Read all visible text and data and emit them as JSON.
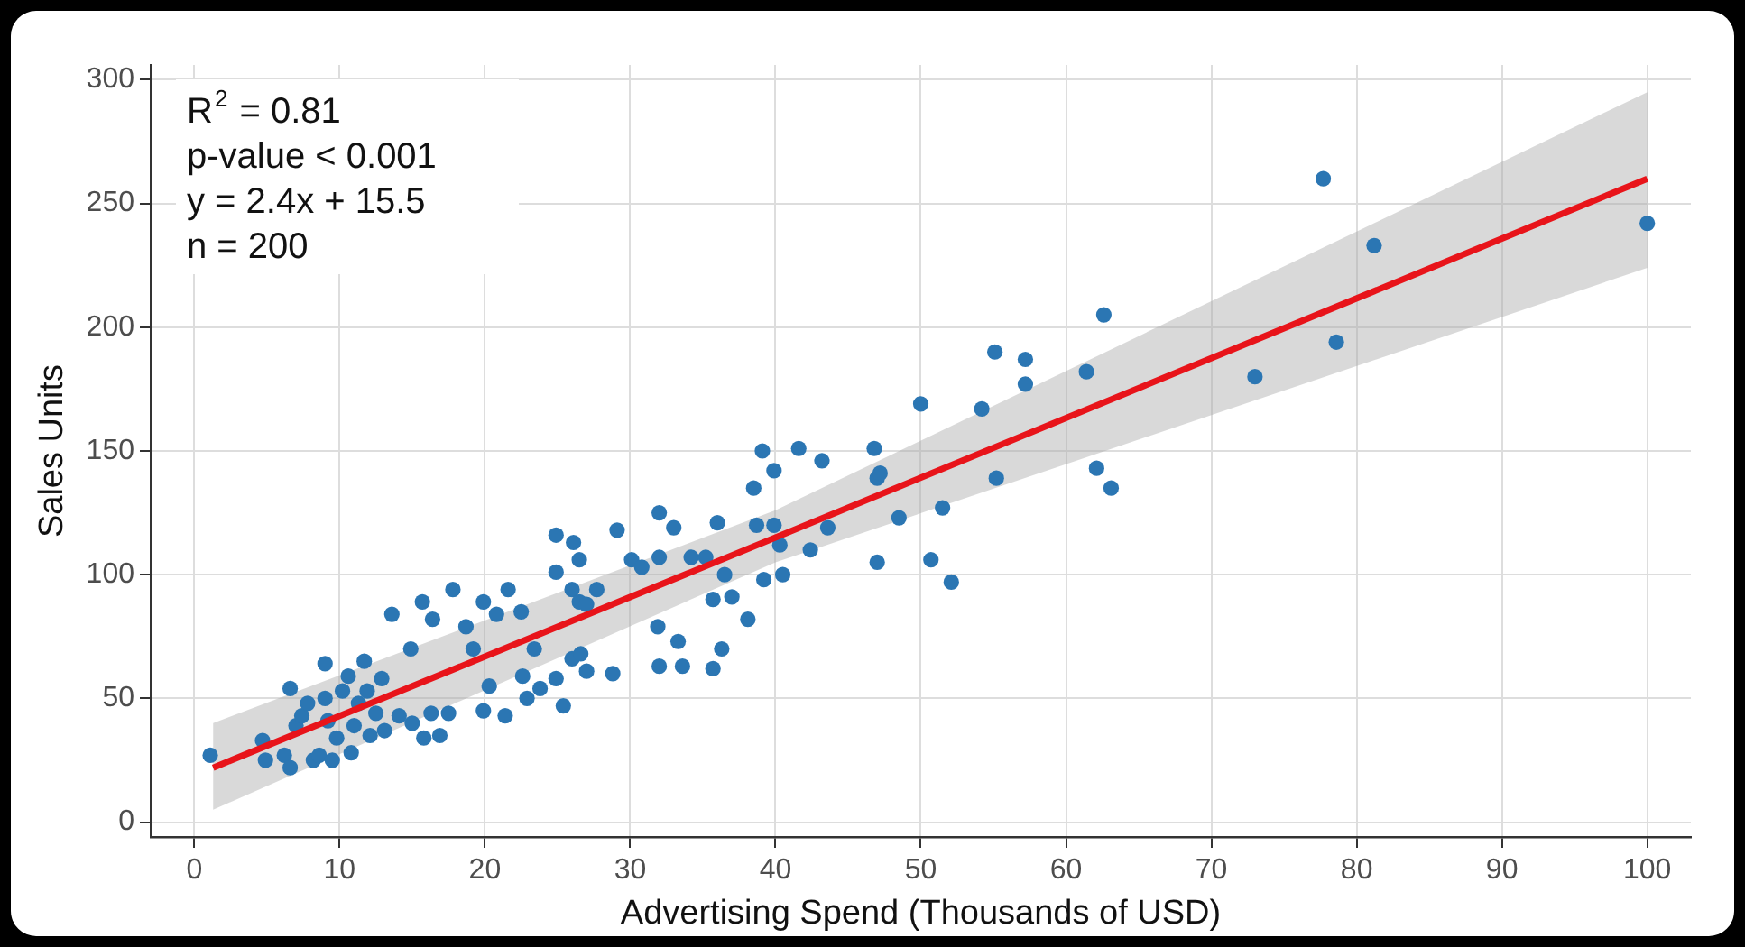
{
  "chart_data": {
    "type": "scatter",
    "xlabel": "Advertising Spend (Thousands of USD)",
    "ylabel": "Sales Units",
    "annotations": [
      "R$^{2}$ = 0.81",
      "p-value < 0.001",
      "y = 2.4x + 15.5",
      "n = 200"
    ],
    "xlim": [
      -3,
      103
    ],
    "ylim": [
      -6,
      306
    ],
    "xticks": [
      0,
      10,
      20,
      30,
      40,
      50,
      60,
      70,
      80,
      90,
      100
    ],
    "yticks": [
      0,
      50,
      100,
      150,
      200,
      250,
      300
    ],
    "grid": true,
    "legend": false,
    "marker": "circle",
    "series": [
      {
        "type": "scatter",
        "color": "#2b76b3",
        "x": [
          1.1,
          4.7,
          4.9,
          6.2,
          6.6,
          6.6,
          7,
          7.4,
          7.8,
          8.2,
          8.6,
          9,
          9,
          9.2,
          9.5,
          9.8,
          10.2,
          10.6,
          10.8,
          11,
          11.3,
          11.7,
          11.9,
          12.1,
          12.5,
          12.9,
          13.1,
          13.6,
          14.1,
          14.9,
          15,
          15.7,
          15.8,
          16.3,
          16.4,
          16.9,
          17.5,
          17.8,
          18.7,
          19.2,
          19.9,
          19.9,
          20.3,
          20.8,
          21.4,
          21.6,
          22.5,
          22.6,
          22.9,
          23.4,
          23.8,
          24.9,
          26.1,
          26.5,
          24.9,
          26,
          26.5,
          27,
          27.7,
          29.1,
          30.1,
          30.8,
          32,
          32,
          33,
          31.9,
          33.3,
          32,
          33.6,
          34.2,
          35.2,
          36,
          36.5,
          35.7,
          37,
          38.1,
          35.7,
          36.3,
          38.5,
          39.1,
          39.9,
          41.6,
          43.2,
          38.7,
          39.9,
          40.3,
          39.2,
          40.5,
          42.4,
          43.6,
          46.8,
          47,
          47.2,
          47,
          48.5,
          27,
          28.8,
          26,
          26.6,
          24.9,
          25.4,
          50,
          51.5,
          50.7,
          52.1,
          54.2,
          55.1,
          55.2,
          57.2,
          57.2,
          61.4,
          62.6,
          62.1,
          63.1,
          73,
          77.7,
          78.6,
          81.2,
          100
        ],
        "values": [
          27,
          33,
          25,
          27,
          22,
          54,
          39,
          43,
          48,
          25,
          27,
          64,
          50,
          41,
          25,
          34,
          53,
          59,
          28,
          39,
          48,
          65,
          53,
          35,
          44,
          58,
          37,
          84,
          43,
          70,
          40,
          89,
          34,
          44,
          82,
          35,
          44,
          94,
          79,
          70,
          89,
          45,
          55,
          84,
          43,
          94,
          85,
          59,
          50,
          70,
          54,
          116,
          113,
          106,
          101,
          94,
          89,
          88,
          94,
          118,
          106,
          103,
          107,
          125,
          119,
          79,
          73,
          63,
          63,
          107,
          107,
          121,
          100,
          90,
          91,
          82,
          62,
          70,
          135,
          150,
          142,
          151,
          146,
          120,
          120,
          112,
          98,
          100,
          110,
          119,
          151,
          139,
          141,
          105,
          123,
          61,
          60,
          66,
          68,
          58,
          47,
          169,
          127,
          106,
          97,
          167,
          190,
          139,
          187,
          177,
          182,
          205,
          143,
          135,
          180,
          260,
          194,
          233,
          242
        ]
      },
      {
        "type": "line",
        "color": "#e8141a",
        "x": [
          1.3,
          40,
          100
        ],
        "values": [
          22,
          115,
          260
        ],
        "lower": [
          5,
          105,
          224
        ],
        "upper": [
          40,
          126,
          295
        ],
        "marker": "none"
      }
    ]
  }
}
